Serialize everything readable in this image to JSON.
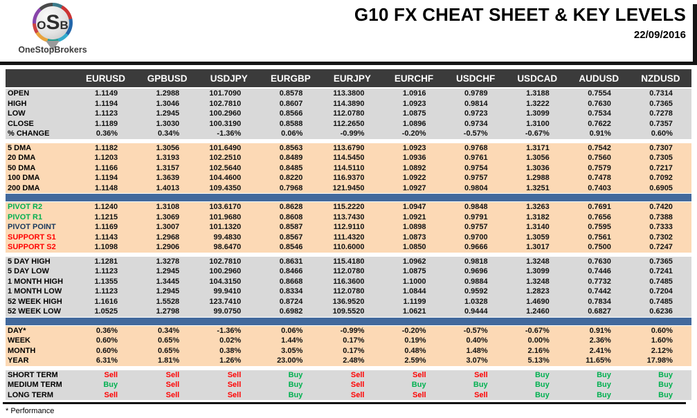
{
  "header": {
    "logo": {
      "o": "O",
      "s": "S",
      "b": "B",
      "name": "OneStopBrokers"
    },
    "title": "G10 FX CHEAT SHEET & KEY LEVELS",
    "date": "22/09/2016"
  },
  "footer": {
    "note": "* Performance"
  },
  "colors": {
    "header_bg": "#3b3b3b",
    "section_gray": "#d9d9d9",
    "section_peach": "#fcd9b5",
    "separator_blue": "#42699c",
    "buy_green": "#00b050",
    "sell_red": "#ff0000",
    "pivot_point_navy": "#17375d"
  },
  "table": {
    "columns": [
      "EURUSD",
      "GPBUSD",
      "USDJPY",
      "EURGBP",
      "EURJPY",
      "EURCHF",
      "USDCHF",
      "USDCAD",
      "AUDUSD",
      "NZDUSD"
    ],
    "sections": [
      {
        "id": "ohlc",
        "bg": "gray",
        "after": "gap",
        "rows": [
          {
            "label": "OPEN",
            "values": [
              "1.1149",
              "1.2988",
              "101.7090",
              "0.8578",
              "113.3800",
              "1.0916",
              "0.9789",
              "1.3188",
              "0.7554",
              "0.7314"
            ]
          },
          {
            "label": "HIGH",
            "values": [
              "1.1194",
              "1.3046",
              "102.7810",
              "0.8607",
              "114.3890",
              "1.0923",
              "0.9814",
              "1.3222",
              "0.7630",
              "0.7365"
            ]
          },
          {
            "label": "LOW",
            "values": [
              "1.1123",
              "1.2945",
              "100.2960",
              "0.8566",
              "112.0780",
              "1.0875",
              "0.9723",
              "1.3099",
              "0.7534",
              "0.7278"
            ]
          },
          {
            "label": "CLOSE",
            "values": [
              "1.1189",
              "1.3030",
              "100.3190",
              "0.8588",
              "112.2650",
              "1.0896",
              "0.9734",
              "1.3100",
              "0.7622",
              "0.7357"
            ]
          },
          {
            "label": "% CHANGE",
            "values": [
              "0.36%",
              "0.34%",
              "-1.36%",
              "0.06%",
              "-0.99%",
              "-0.20%",
              "-0.57%",
              "-0.67%",
              "0.91%",
              "0.60%"
            ]
          }
        ]
      },
      {
        "id": "moving-averages",
        "bg": "peach",
        "after": "bar",
        "rows": [
          {
            "label": "5 DMA",
            "values": [
              "1.1182",
              "1.3056",
              "101.6490",
              "0.8563",
              "113.6790",
              "1.0923",
              "0.9768",
              "1.3171",
              "0.7542",
              "0.7307"
            ]
          },
          {
            "label": "20 DMA",
            "values": [
              "1.1203",
              "1.3193",
              "102.2510",
              "0.8489",
              "114.5450",
              "1.0936",
              "0.9761",
              "1.3056",
              "0.7560",
              "0.7305"
            ]
          },
          {
            "label": "50 DMA",
            "values": [
              "1.1166",
              "1.3157",
              "102.5640",
              "0.8485",
              "114.5110",
              "1.0892",
              "0.9754",
              "1.3036",
              "0.7579",
              "0.7217"
            ]
          },
          {
            "label": "100 DMA",
            "values": [
              "1.1194",
              "1.3639",
              "104.4600",
              "0.8220",
              "116.9370",
              "1.0922",
              "0.9757",
              "1.2988",
              "0.7478",
              "0.7092"
            ]
          },
          {
            "label": "200 DMA",
            "values": [
              "1.1148",
              "1.4013",
              "109.4350",
              "0.7968",
              "121.9450",
              "1.0927",
              "0.9804",
              "1.3251",
              "0.7403",
              "0.6905"
            ]
          }
        ]
      },
      {
        "id": "pivots",
        "bg": "peach",
        "after": "gap",
        "rows": [
          {
            "label": "PIVOT R2",
            "label_color": "green",
            "values": [
              "1.1240",
              "1.3108",
              "103.6170",
              "0.8628",
              "115.2220",
              "1.0947",
              "0.9848",
              "1.3263",
              "0.7691",
              "0.7420"
            ]
          },
          {
            "label": "PIVOT R1",
            "label_color": "green",
            "values": [
              "1.1215",
              "1.3069",
              "101.9680",
              "0.8608",
              "113.7430",
              "1.0921",
              "0.9791",
              "1.3182",
              "0.7656",
              "0.7388"
            ]
          },
          {
            "label": "PIVOT POINT",
            "label_color": "navy",
            "values": [
              "1.1169",
              "1.3007",
              "101.1320",
              "0.8587",
              "112.9110",
              "1.0898",
              "0.9757",
              "1.3140",
              "0.7595",
              "0.7333"
            ]
          },
          {
            "label": "SUPPORT S1",
            "label_color": "red",
            "values": [
              "1.1143",
              "1.2968",
              "99.4830",
              "0.8567",
              "111.4320",
              "1.0873",
              "0.9700",
              "1.3059",
              "0.7561",
              "0.7302"
            ]
          },
          {
            "label": "SUPPORT S2",
            "label_color": "red",
            "values": [
              "1.1098",
              "1.2906",
              "98.6470",
              "0.8546",
              "110.6000",
              "1.0850",
              "0.9666",
              "1.3017",
              "0.7500",
              "0.7247"
            ]
          }
        ]
      },
      {
        "id": "ranges",
        "bg": "gray",
        "after": "bar",
        "rows": [
          {
            "label": "5 DAY HIGH",
            "values": [
              "1.1281",
              "1.3278",
              "102.7810",
              "0.8631",
              "115.4180",
              "1.0962",
              "0.9818",
              "1.3248",
              "0.7630",
              "0.7365"
            ]
          },
          {
            "label": "5 DAY LOW",
            "values": [
              "1.1123",
              "1.2945",
              "100.2960",
              "0.8466",
              "112.0780",
              "1.0875",
              "0.9696",
              "1.3099",
              "0.7446",
              "0.7241"
            ]
          },
          {
            "label": "1 MONTH HIGH",
            "values": [
              "1.1355",
              "1.3445",
              "104.3150",
              "0.8668",
              "116.3600",
              "1.1000",
              "0.9884",
              "1.3248",
              "0.7732",
              "0.7485"
            ]
          },
          {
            "label": "1 MONTH LOW",
            "values": [
              "1.1123",
              "1.2945",
              "99.9410",
              "0.8334",
              "112.0780",
              "1.0844",
              "0.9592",
              "1.2823",
              "0.7442",
              "0.7204"
            ]
          },
          {
            "label": "52 WEEK HIGH",
            "values": [
              "1.1616",
              "1.5528",
              "123.7410",
              "0.8724",
              "136.9520",
              "1.1199",
              "1.0328",
              "1.4690",
              "0.7834",
              "0.7485"
            ]
          },
          {
            "label": "52 WEEK LOW",
            "values": [
              "1.0525",
              "1.2798",
              "99.0750",
              "0.6982",
              "109.5520",
              "1.0621",
              "0.9444",
              "1.2460",
              "0.6827",
              "0.6236"
            ]
          }
        ]
      },
      {
        "id": "performance",
        "bg": "peach",
        "after": "gap",
        "rows": [
          {
            "label": "DAY*",
            "values": [
              "0.36%",
              "0.34%",
              "-1.36%",
              "0.06%",
              "-0.99%",
              "-0.20%",
              "-0.57%",
              "-0.67%",
              "0.91%",
              "0.60%"
            ]
          },
          {
            "label": "WEEK",
            "values": [
              "0.60%",
              "0.65%",
              "0.02%",
              "1.44%",
              "0.17%",
              "0.19%",
              "0.40%",
              "0.00%",
              "2.36%",
              "1.60%"
            ]
          },
          {
            "label": "MONTH",
            "values": [
              "0.60%",
              "0.65%",
              "0.38%",
              "3.05%",
              "0.17%",
              "0.48%",
              "1.48%",
              "2.16%",
              "2.41%",
              "2.12%"
            ]
          },
          {
            "label": "YEAR",
            "values": [
              "6.31%",
              "1.81%",
              "1.26%",
              "23.00%",
              "2.48%",
              "2.59%",
              "3.07%",
              "5.13%",
              "11.65%",
              "17.98%"
            ]
          }
        ]
      },
      {
        "id": "trend",
        "bg": "gray",
        "signal": true,
        "after": "none",
        "rows": [
          {
            "label": "SHORT TERM",
            "values": [
              "Sell",
              "Sell",
              "Sell",
              "Buy",
              "Sell",
              "Sell",
              "Sell",
              "Buy",
              "Buy",
              "Buy"
            ]
          },
          {
            "label": "MEDIUM TERM",
            "values": [
              "Buy",
              "Sell",
              "Sell",
              "Buy",
              "Sell",
              "Buy",
              "Buy",
              "Buy",
              "Buy",
              "Buy"
            ]
          },
          {
            "label": "LONG TERM",
            "values": [
              "Sell",
              "Sell",
              "Sell",
              "Buy",
              "Sell",
              "Sell",
              "Sell",
              "Buy",
              "Buy",
              "Buy"
            ]
          }
        ]
      }
    ]
  }
}
